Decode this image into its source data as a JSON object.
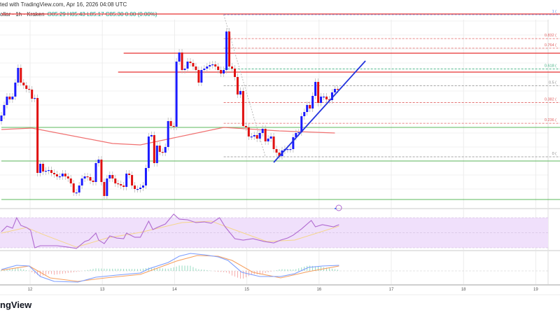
{
  "header": {
    "published": "ted with TradingView.com, Apr 16, 2026 04:08 UTC",
    "symbol": "ollar · 1h · Kraken",
    "ohlc": "O85.29  H85.43  L85.17  C85.30  0.00 (0.00%)"
  },
  "logo": "ngView",
  "colors": {
    "up": "#1a1aff",
    "down": "#e01010",
    "ma": "#f07070",
    "resistance": "#e83030",
    "support": "#5cb85c",
    "trend": "#2233dd",
    "rsi": "#b06ad0",
    "rsi_ma": "#f5d58a",
    "rsi_band": "#f0e0fb",
    "macd": "#7b9cff",
    "signal": "#f5a060",
    "hist_up": "#5cc9a0",
    "hist_down": "#f08080"
  },
  "chart_data": {
    "type": "candlestick",
    "interval": "1h",
    "x_ticks": [
      "12",
      "13",
      "14",
      "15",
      "16",
      "17",
      "18",
      "19"
    ],
    "first_open": 84.4,
    "closes": [
      84.56,
      84.86,
      85.1,
      85.02,
      85.1,
      85.5,
      85.92,
      85.5,
      85.42,
      85.32,
      85.3,
      85.04,
      85.06,
      82.92,
      83.18,
      82.96,
      82.98,
      83.0,
      82.92,
      82.88,
      82.82,
      82.82,
      82.9,
      82.82,
      82.76,
      82.62,
      82.36,
      82.36,
      82.56,
      82.76,
      82.82,
      82.8,
      82.7,
      82.66,
      83.2,
      83.3,
      82.66,
      82.26,
      82.76,
      82.86,
      82.76,
      82.62,
      82.6,
      82.56,
      82.52,
      82.9,
      82.86,
      82.56,
      82.46,
      82.46,
      82.5,
      82.56,
      83.06,
      83.96,
      84.0,
      83.2,
      83.7,
      83.52,
      83.5,
      83.66,
      84.4,
      84.26,
      84.24,
      86.1,
      86.36,
      85.86,
      85.9,
      86.1,
      86.06,
      85.96,
      85.86,
      85.5,
      85.86,
      85.9,
      85.96,
      86.0,
      86.02,
      85.96,
      85.86,
      85.76,
      85.86,
      86.96,
      85.96,
      85.9,
      85.66,
      85.16,
      85.26,
      84.26,
      84.22,
      83.96,
      83.96,
      84.0,
      83.9,
      84.06,
      84.18,
      83.82,
      83.9,
      83.96,
      83.6,
      83.5,
      83.4,
      83.56,
      83.6,
      83.6,
      83.6,
      83.94,
      84.06,
      84.08,
      84.54,
      84.66,
      84.86,
      84.76,
      85.12,
      85.52,
      84.92,
      85.1,
      85.1,
      85.02,
      85.0,
      85.22,
      85.32,
      85.3
    ],
    "moving_average": [
      [
        0,
        84.16
      ],
      [
        11,
        84.2
      ],
      [
        40,
        83.76
      ],
      [
        50,
        83.72
      ],
      [
        62,
        83.92
      ],
      [
        80,
        84.22
      ],
      [
        100,
        84.12
      ],
      [
        120,
        84.06
      ]
    ],
    "horizontal_lines": [
      {
        "price": 87.46,
        "kind": "resistance",
        "from": 0
      },
      {
        "price": 86.34,
        "kind": "resistance",
        "from": 44
      },
      {
        "price": 85.8,
        "kind": "resistance",
        "from": 42
      },
      {
        "price": 84.22,
        "kind": "support",
        "from": 0
      },
      {
        "price": 83.26,
        "kind": "support",
        "from": 0
      },
      {
        "price": 82.16,
        "kind": "support",
        "from": 0
      }
    ],
    "fibonacci": {
      "from_index": 80,
      "high": 87.44,
      "low": 83.38,
      "diagonal_to_index": 95,
      "levels": [
        {
          "label": "1 (",
          "ratio": 1,
          "color": "#5b8def"
        },
        {
          "label": "0.832 (",
          "ratio": 0.832,
          "color": "#e06060"
        },
        {
          "label": "0.764 (",
          "ratio": 0.764,
          "color": "#e06060"
        },
        {
          "label": "0.618 (",
          "ratio": 0.618,
          "color": "#40b080"
        },
        {
          "label": "0.5 (",
          "ratio": 0.5,
          "color": "#888888"
        },
        {
          "label": "0.382 (",
          "ratio": 0.382,
          "color": "#e06060"
        },
        {
          "label": "0.236 (",
          "ratio": 0.236,
          "color": "#e06060"
        },
        {
          "label": "0 (",
          "ratio": 0,
          "color": "#888888"
        }
      ]
    },
    "trendline": [
      [
        98,
        83.22
      ],
      [
        131,
        86.12
      ]
    ],
    "rsi": {
      "band": [
        30,
        70
      ],
      "values": [
        [
          0,
          51.4
        ],
        [
          2,
          58.8
        ],
        [
          4,
          56.0
        ],
        [
          5.5,
          70
        ],
        [
          7,
          59.8
        ],
        [
          9,
          57.0
        ],
        [
          10.5,
          53.3
        ],
        [
          12,
          30.0
        ],
        [
          14,
          32.8
        ],
        [
          16,
          32.8
        ],
        [
          20,
          32.8
        ],
        [
          24,
          30.9
        ],
        [
          27,
          29.1
        ],
        [
          30,
          38.4
        ],
        [
          31.5,
          40.2
        ],
        [
          34,
          49.5
        ],
        [
          35,
          40.2
        ],
        [
          37,
          35.6
        ],
        [
          39,
          45.8
        ],
        [
          41.5,
          43.0
        ],
        [
          44,
          42.1
        ],
        [
          45,
          49.5
        ],
        [
          48,
          44.0
        ],
        [
          50,
          44.0
        ],
        [
          53,
          65.4
        ],
        [
          54.5,
          54.2
        ],
        [
          56,
          57.0
        ],
        [
          59,
          61.6
        ],
        [
          62,
          74.7
        ],
        [
          64,
          68.1
        ],
        [
          67,
          67.2
        ],
        [
          70,
          63.5
        ],
        [
          73,
          64.4
        ],
        [
          75.5,
          62.6
        ],
        [
          78.5,
          70.0
        ],
        [
          80.5,
          57.9
        ],
        [
          84,
          42.1
        ],
        [
          87,
          40.2
        ],
        [
          90.5,
          42.1
        ],
        [
          94.5,
          38.4
        ],
        [
          98,
          36.5
        ],
        [
          100.5,
          40.2
        ],
        [
          103,
          43.0
        ],
        [
          105,
          46.8
        ],
        [
          108,
          55.1
        ],
        [
          111.5,
          66.3
        ],
        [
          113,
          57.9
        ],
        [
          115.5,
          60.7
        ],
        [
          119.5,
          57.9
        ],
        [
          121.5,
          60.7
        ]
      ],
      "ma": [
        [
          0,
          49.5
        ],
        [
          9,
          57.0
        ],
        [
          15,
          47.7
        ],
        [
          27,
          30.9
        ],
        [
          38,
          43.0
        ],
        [
          50,
          50.5
        ],
        [
          65,
          63.5
        ],
        [
          75.5,
          65.4
        ],
        [
          83,
          55.1
        ],
        [
          95.5,
          38.4
        ],
        [
          105.5,
          40.2
        ],
        [
          121.5,
          58.8
        ]
      ]
    },
    "macd": {
      "macd": [
        [
          0,
          0.02
        ],
        [
          5.5,
          0.08
        ],
        [
          10,
          0.07
        ],
        [
          14,
          -0.08
        ],
        [
          19,
          -0.15
        ],
        [
          27.5,
          -0.16
        ],
        [
          34,
          -0.09
        ],
        [
          41.5,
          -0.06
        ],
        [
          50,
          -0.03
        ],
        [
          53,
          0.03
        ],
        [
          60,
          0.12
        ],
        [
          64,
          0.21
        ],
        [
          68,
          0.25
        ],
        [
          73,
          0.23
        ],
        [
          78,
          0.2
        ],
        [
          81.5,
          0.15
        ],
        [
          86.5,
          -0.02
        ],
        [
          93,
          -0.08
        ],
        [
          100.5,
          -0.08
        ],
        [
          105.5,
          -0.04
        ],
        [
          110.5,
          0.05
        ],
        [
          115.5,
          0.07
        ],
        [
          121.5,
          0.08
        ]
      ],
      "signal": [
        [
          0,
          0.01
        ],
        [
          10,
          0.07
        ],
        [
          17.5,
          -0.1
        ],
        [
          27.5,
          -0.15
        ],
        [
          37.5,
          -0.1
        ],
        [
          50,
          -0.05
        ],
        [
          63,
          0.14
        ],
        [
          70.5,
          0.22
        ],
        [
          78,
          0.21
        ],
        [
          83,
          0.15
        ],
        [
          90.5,
          -0.02
        ],
        [
          100.5,
          -0.1
        ],
        [
          110.5,
          -0.01
        ],
        [
          121.5,
          0.07
        ]
      ]
    }
  }
}
